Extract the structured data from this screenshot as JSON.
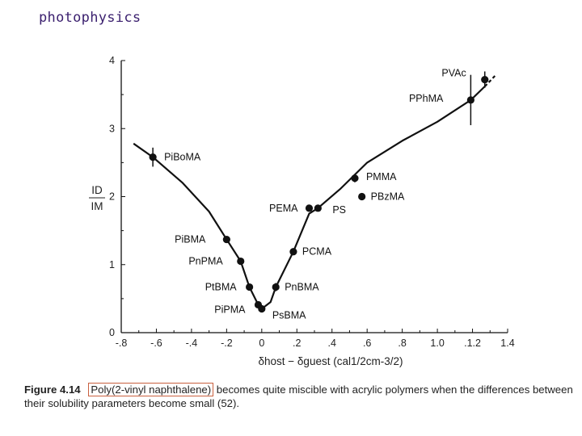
{
  "slide_title": "photophysics",
  "caption": {
    "figure_label": "Figure 4.14",
    "highlighted": "Poly(2-vinyl naphthalene)",
    "text": "becomes quite miscible with acrylic polymers when the differences between their solubility parameters become small (52)."
  },
  "chart_data": {
    "type": "scatter",
    "xlabel": "δhost − δguest (cal1/2cm-3/2)",
    "ylabel_num": "ID",
    "ylabel_den": "IM",
    "xlim": [
      -0.8,
      1.4
    ],
    "ylim": [
      0,
      4
    ],
    "x_ticks": [
      -0.8,
      -0.6,
      -0.4,
      -0.2,
      0,
      0.2,
      0.4,
      0.6,
      0.8,
      1.0,
      1.2,
      1.4
    ],
    "x_tick_labels": [
      "-.8",
      "-.6",
      "-.4",
      "-.2",
      "0",
      ".2",
      ".4",
      ".6",
      ".8",
      "1.0",
      ".1.2",
      "1.4"
    ],
    "y_ticks": [
      0,
      1,
      2,
      3,
      4
    ],
    "y_tick_labels": [
      "0",
      "1",
      "2",
      "3",
      "4"
    ],
    "points": [
      {
        "label": "PiBoMA",
        "x": -0.62,
        "y": 2.58,
        "err": 0.14
      },
      {
        "label": "PiBMA",
        "x": -0.2,
        "y": 1.37,
        "err": 0
      },
      {
        "label": "PnPMA",
        "x": -0.12,
        "y": 1.05,
        "err": 0
      },
      {
        "label": "PtBMA",
        "x": -0.07,
        "y": 0.67,
        "err": 0
      },
      {
        "label": "PiPMA",
        "x": -0.02,
        "y": 0.41,
        "err": 0
      },
      {
        "label": "PsBMA",
        "x": 0.0,
        "y": 0.35,
        "err": 0
      },
      {
        "label": "PnBMA",
        "x": 0.08,
        "y": 0.67,
        "err": 0.06
      },
      {
        "label": "PCMA",
        "x": 0.18,
        "y": 1.19,
        "err": 0
      },
      {
        "label": "PEMA",
        "x": 0.27,
        "y": 1.83,
        "err": 0
      },
      {
        "label": "PS",
        "x": 0.32,
        "y": 1.83,
        "err": 0
      },
      {
        "label": "PMMA",
        "x": 0.53,
        "y": 2.27,
        "err": 0.06
      },
      {
        "label": "PBzMA",
        "x": 0.57,
        "y": 2.0,
        "err": 0
      },
      {
        "label": "PPhMA",
        "x": 1.19,
        "y": 3.42,
        "err": 0.37
      },
      {
        "label": "PVAc",
        "x": 1.27,
        "y": 3.72,
        "err": 0.12
      }
    ],
    "curve": [
      [
        -0.73,
        2.78
      ],
      [
        -0.62,
        2.58
      ],
      [
        -0.45,
        2.2
      ],
      [
        -0.3,
        1.78
      ],
      [
        -0.2,
        1.37
      ],
      [
        -0.12,
        1.05
      ],
      [
        -0.07,
        0.67
      ],
      [
        -0.02,
        0.41
      ],
      [
        0.0,
        0.35
      ],
      [
        0.05,
        0.45
      ],
      [
        0.08,
        0.67
      ],
      [
        0.18,
        1.19
      ],
      [
        0.27,
        1.75
      ],
      [
        0.32,
        1.83
      ],
      [
        0.45,
        2.12
      ],
      [
        0.6,
        2.5
      ],
      [
        0.8,
        2.82
      ],
      [
        1.0,
        3.1
      ],
      [
        1.19,
        3.42
      ],
      [
        1.27,
        3.62
      ],
      [
        1.33,
        3.78
      ]
    ],
    "curve_dashed_from_x": 1.27,
    "grid": false,
    "legend": "none"
  }
}
